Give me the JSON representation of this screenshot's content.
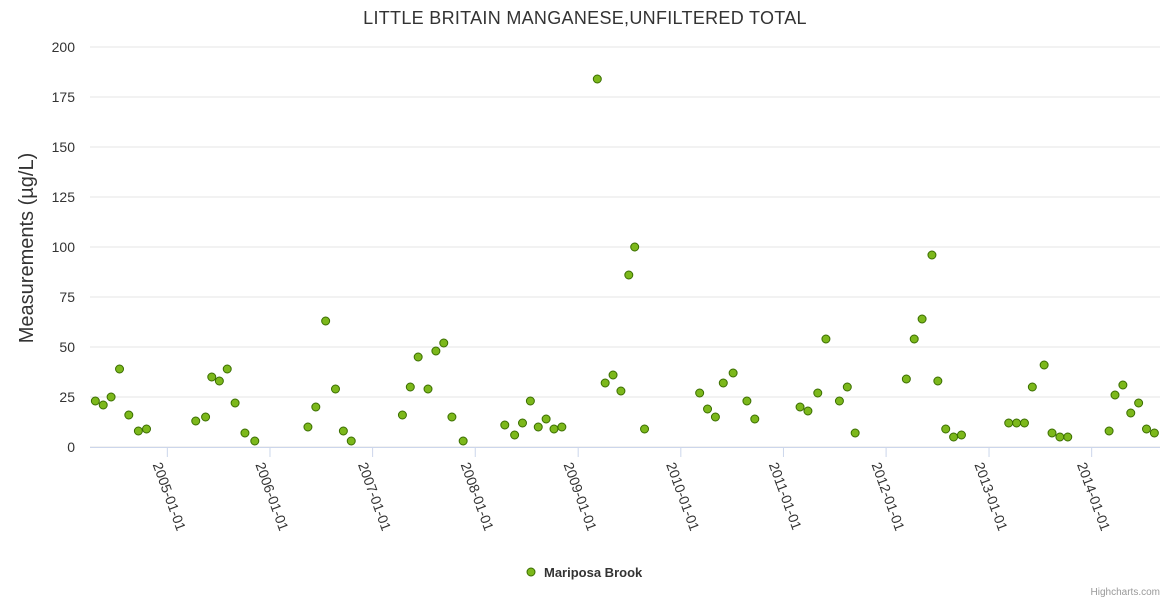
{
  "chart_data": {
    "type": "scatter",
    "title": "LITTLE BRITAIN MANGANESE,UNFILTERED TOTAL",
    "xlabel": "",
    "ylabel": "Measurements (µg/L)",
    "ylim": [
      0,
      200
    ],
    "yticks": [
      0,
      25,
      50,
      75,
      100,
      125,
      150,
      175,
      200
    ],
    "xlim": [
      "2004-04-01",
      "2014-09-01"
    ],
    "xticks": [
      "2005-01-01",
      "2006-01-01",
      "2007-01-01",
      "2008-01-01",
      "2009-01-01",
      "2010-01-01",
      "2011-01-01",
      "2012-01-01",
      "2013-01-01",
      "2014-01-01"
    ],
    "grid": true,
    "legend_position": "bottom-center",
    "series": [
      {
        "name": "Mariposa Brook",
        "color": "#7cb81b",
        "edge_color": "#3a6d00",
        "points": [
          [
            "2004-04-20",
            23
          ],
          [
            "2004-05-18",
            21
          ],
          [
            "2004-06-15",
            25
          ],
          [
            "2004-07-15",
            39
          ],
          [
            "2004-08-17",
            16
          ],
          [
            "2004-09-20",
            8
          ],
          [
            "2004-10-19",
            9
          ],
          [
            "2005-04-12",
            13
          ],
          [
            "2005-05-17",
            15
          ],
          [
            "2005-06-08",
            35
          ],
          [
            "2005-07-05",
            33
          ],
          [
            "2005-08-02",
            39
          ],
          [
            "2005-08-30",
            22
          ],
          [
            "2005-10-04",
            7
          ],
          [
            "2005-11-08",
            3
          ],
          [
            "2006-05-16",
            10
          ],
          [
            "2006-06-13",
            20
          ],
          [
            "2006-07-18",
            63
          ],
          [
            "2006-08-22",
            29
          ],
          [
            "2006-09-19",
            8
          ],
          [
            "2006-10-17",
            3
          ],
          [
            "2007-04-17",
            16
          ],
          [
            "2007-05-15",
            30
          ],
          [
            "2007-06-12",
            45
          ],
          [
            "2007-07-17",
            29
          ],
          [
            "2007-08-14",
            48
          ],
          [
            "2007-09-11",
            52
          ],
          [
            "2007-10-10",
            15
          ],
          [
            "2007-11-19",
            3
          ],
          [
            "2008-04-15",
            11
          ],
          [
            "2008-05-20",
            6
          ],
          [
            "2008-06-17",
            12
          ],
          [
            "2008-07-15",
            23
          ],
          [
            "2008-08-12",
            10
          ],
          [
            "2008-09-09",
            14
          ],
          [
            "2008-10-07",
            9
          ],
          [
            "2008-11-04",
            10
          ],
          [
            "2009-03-10",
            184
          ],
          [
            "2009-04-07",
            32
          ],
          [
            "2009-05-05",
            36
          ],
          [
            "2009-06-02",
            28
          ],
          [
            "2009-06-30",
            86
          ],
          [
            "2009-07-21",
            100
          ],
          [
            "2009-08-25",
            9
          ],
          [
            "2010-03-09",
            27
          ],
          [
            "2010-04-06",
            19
          ],
          [
            "2010-05-04",
            15
          ],
          [
            "2010-06-01",
            32
          ],
          [
            "2010-07-06",
            37
          ],
          [
            "2010-08-24",
            23
          ],
          [
            "2010-09-21",
            14
          ],
          [
            "2011-03-01",
            20
          ],
          [
            "2011-03-29",
            18
          ],
          [
            "2011-05-03",
            27
          ],
          [
            "2011-06-01",
            54
          ],
          [
            "2011-07-19",
            23
          ],
          [
            "2011-08-16",
            30
          ],
          [
            "2011-09-13",
            7
          ],
          [
            "2012-03-13",
            34
          ],
          [
            "2012-04-10",
            54
          ],
          [
            "2012-05-08",
            64
          ],
          [
            "2012-06-12",
            96
          ],
          [
            "2012-07-03",
            33
          ],
          [
            "2012-07-31",
            9
          ],
          [
            "2012-08-28",
            5
          ],
          [
            "2012-09-25",
            6
          ],
          [
            "2013-03-12",
            12
          ],
          [
            "2013-04-09",
            12
          ],
          [
            "2013-05-07",
            12
          ],
          [
            "2013-06-04",
            30
          ],
          [
            "2013-07-16",
            41
          ],
          [
            "2013-08-13",
            7
          ],
          [
            "2013-09-10",
            5
          ],
          [
            "2013-10-08",
            5
          ],
          [
            "2014-03-04",
            8
          ],
          [
            "2014-03-25",
            26
          ],
          [
            "2014-04-22",
            31
          ],
          [
            "2014-05-20",
            17
          ],
          [
            "2014-06-17",
            22
          ],
          [
            "2014-07-15",
            9
          ],
          [
            "2014-08-12",
            7
          ]
        ]
      }
    ]
  },
  "credits": "Highcharts.com"
}
